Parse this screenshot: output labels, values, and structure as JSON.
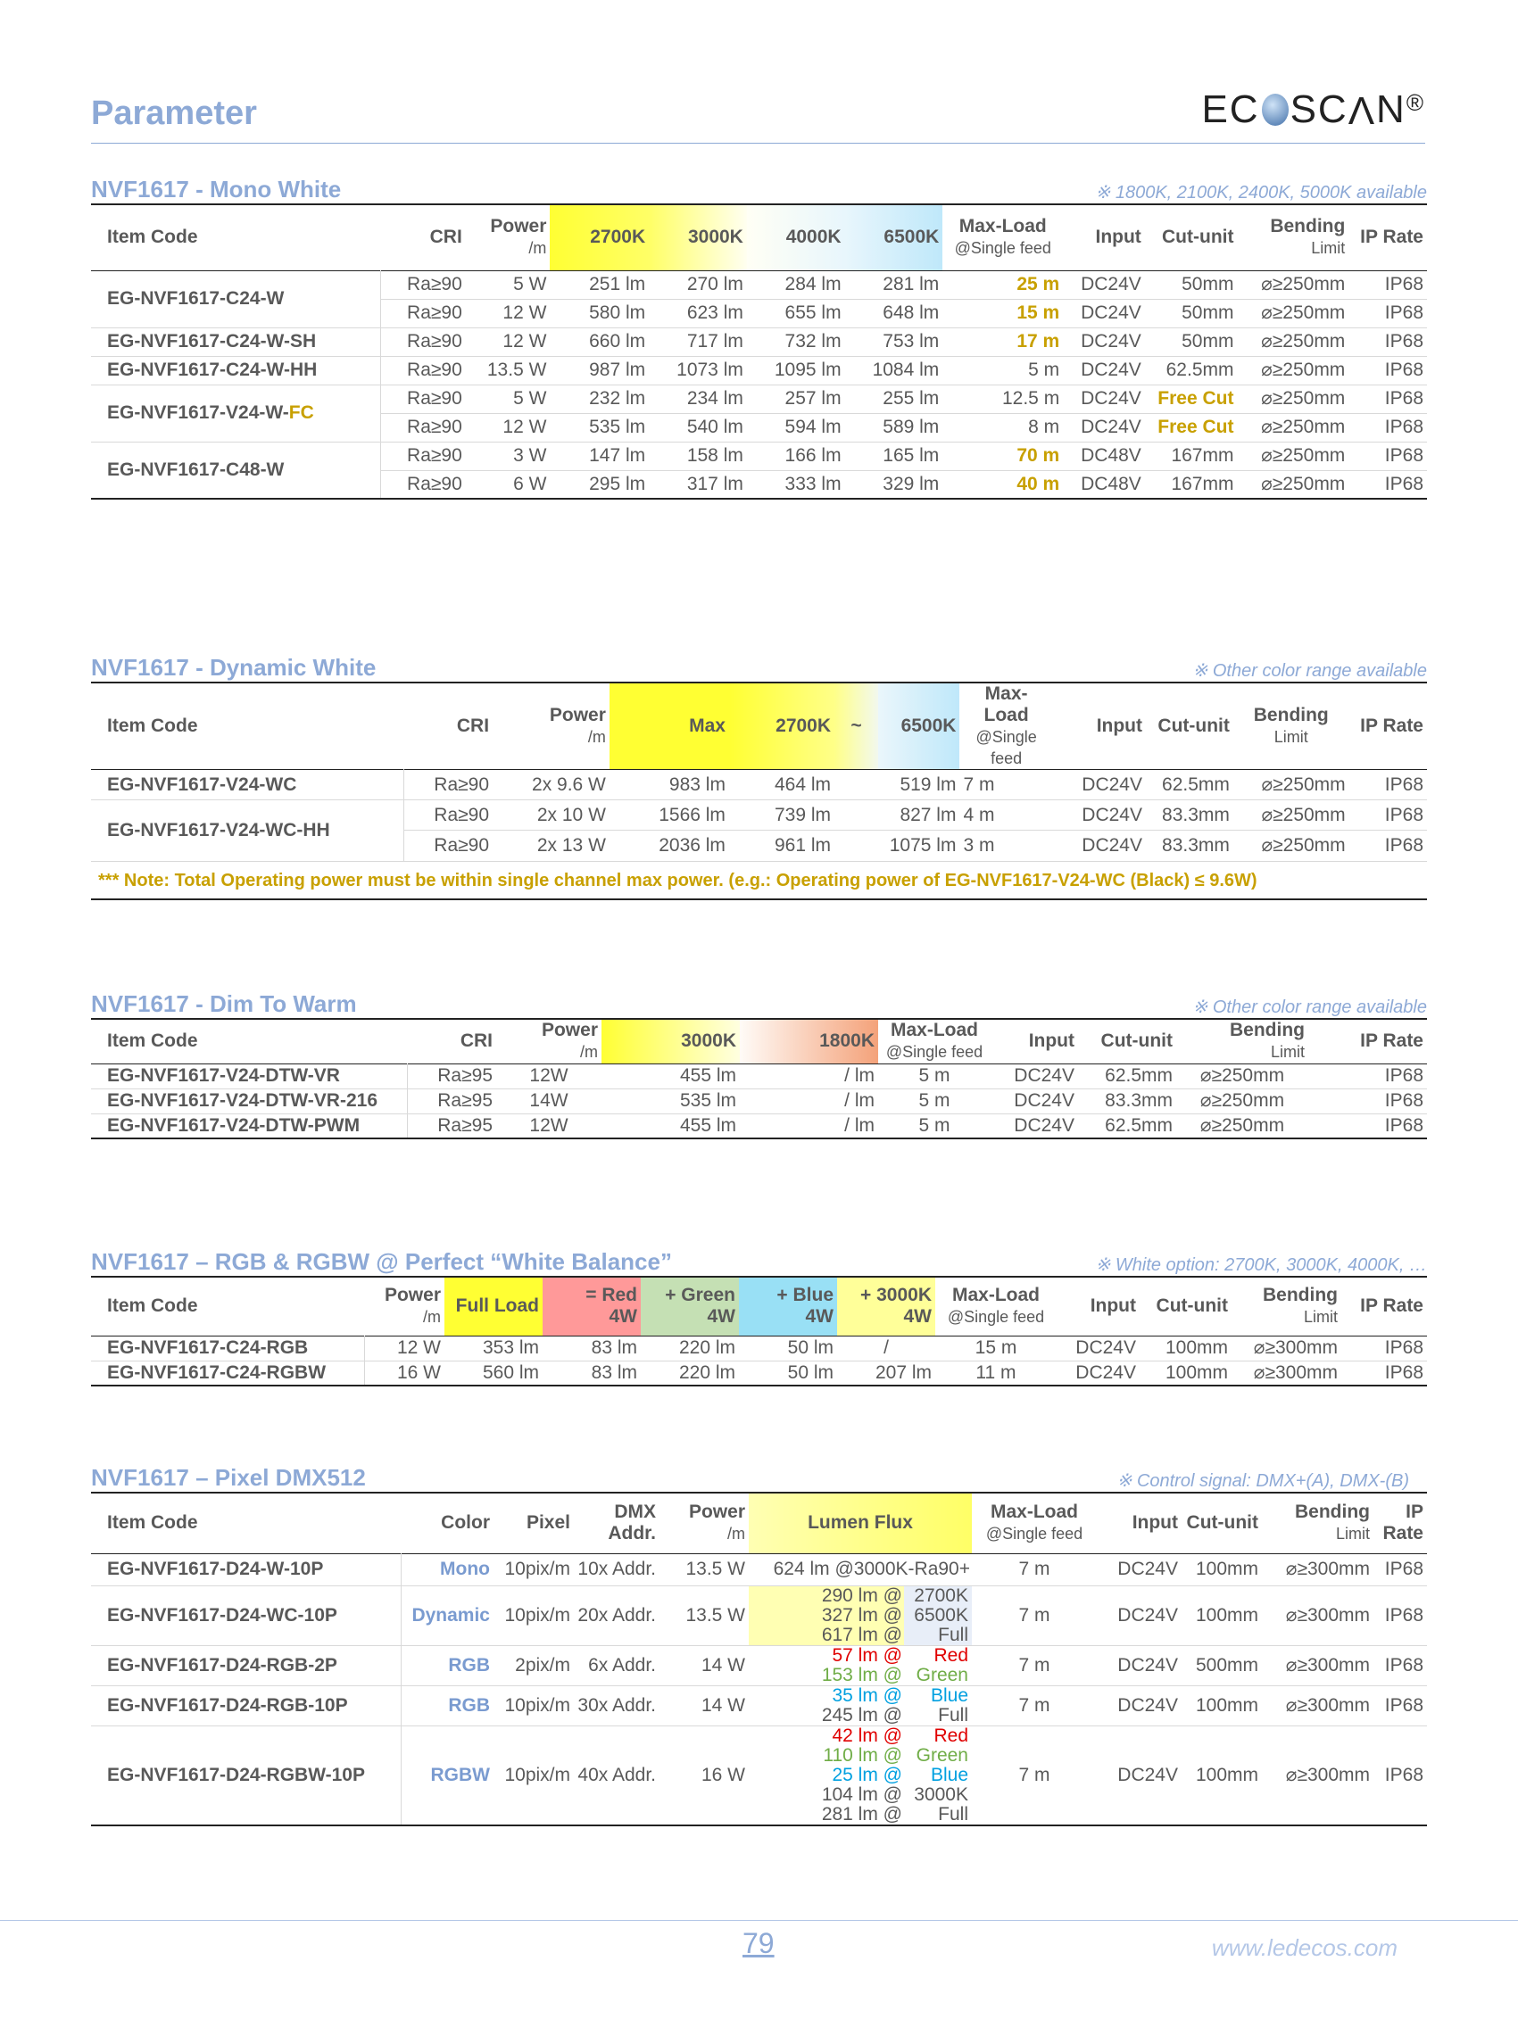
{
  "page": {
    "title": "Parameter",
    "logo": "ECOSCAN",
    "page_number": "79",
    "website": "www.ledecos.com"
  },
  "s1": {
    "title": "NVF1617 - Mono White",
    "note": "※  1800K, 2100K, 2400K, 5000K available",
    "headers": {
      "code": "Item Code",
      "cri": "CRI",
      "power": "Power",
      "power_unit": "/m",
      "k1": "2700K",
      "k2": "3000K",
      "k3": "4000K",
      "k4": "6500K",
      "maxload": "Max-Load",
      "maxload_sub": "@Single feed",
      "input": "Input",
      "cut": "Cut-unit",
      "bend": "Bending",
      "bend_sub": "Limit",
      "ip": "IP Rate"
    },
    "groups": [
      {
        "code": "EG-NVF1617-C24-W",
        "code_suffix": "",
        "rows": [
          [
            "Ra≥90",
            "5 W",
            "251  lm",
            "270  lm",
            "284  lm",
            "281  lm",
            "25 m",
            "DC24V",
            "50mm",
            "⌀≥250mm",
            "IP68"
          ],
          [
            "Ra≥90",
            "12 W",
            "580  lm",
            "623  lm",
            "655  lm",
            "648  lm",
            "15 m",
            "DC24V",
            "50mm",
            "⌀≥250mm",
            "IP68"
          ]
        ]
      },
      {
        "code": "EG-NVF1617-C24-W-SH",
        "code_suffix": "",
        "rows": [
          [
            "Ra≥90",
            "12 W",
            "660  lm",
            "717  lm",
            "732  lm",
            "753  lm",
            "17 m",
            "DC24V",
            "50mm",
            "⌀≥250mm",
            "IP68"
          ]
        ]
      },
      {
        "code": "EG-NVF1617-C24-W-HH",
        "code_suffix": "",
        "rows": [
          [
            "Ra≥90",
            "13.5 W",
            "987  lm",
            "1073  lm",
            "1095  lm",
            "1084  lm",
            "5 m",
            "DC24V",
            "62.5mm",
            "⌀≥250mm",
            "IP68"
          ]
        ]
      },
      {
        "code": "EG-NVF1617-V24-W-",
        "code_suffix": "FC",
        "rows": [
          [
            "Ra≥90",
            "5 W",
            "232  lm",
            "234  lm",
            "257  lm",
            "255  lm",
            "12.5  m",
            "DC24V",
            "Free Cut",
            "⌀≥250mm",
            "IP68"
          ],
          [
            "Ra≥90",
            "12 W",
            "535  lm",
            "540  lm",
            "594  lm",
            "589  lm",
            "8 m",
            "DC24V",
            "Free Cut",
            "⌀≥250mm",
            "IP68"
          ]
        ]
      },
      {
        "code": "EG-NVF1617-C48-W",
        "code_suffix": "",
        "rows": [
          [
            "Ra≥90",
            "3 W",
            "147  lm",
            "158  lm",
            "166  lm",
            "165  lm",
            "70 m",
            "DC48V",
            "167mm",
            "⌀≥250mm",
            "IP68"
          ],
          [
            "Ra≥90",
            "6 W",
            "295  lm",
            "317  lm",
            "333  lm",
            "329  lm",
            "40 m",
            "DC48V",
            "167mm",
            "⌀≥250mm",
            "IP68"
          ]
        ]
      }
    ]
  },
  "s2": {
    "title": "NVF1617 - Dynamic White",
    "note": "※  Other color range available",
    "headers": {
      "code": "Item Code",
      "cri": "CRI",
      "power": "Power",
      "power_unit": "/m",
      "max": "Max",
      "k1": "2700K",
      "tilde": "~",
      "k2": "6500K",
      "maxload": "Max-Load",
      "maxload_sub1": "@Single",
      "maxload_sub2": "feed",
      "input": "Input",
      "cut": "Cut-unit",
      "bend": "Bending",
      "bend_sub": "Limit",
      "ip": "IP Rate"
    },
    "groups": [
      {
        "code": "EG-NVF1617-V24-WC",
        "rows": [
          [
            "Ra≥90",
            "2x 9.6 W",
            "983  lm",
            "464  lm",
            "519  lm",
            "7  m",
            "DC24V",
            "62.5mm",
            "⌀≥250mm",
            "IP68"
          ]
        ]
      },
      {
        "code": "EG-NVF1617-V24-WC-HH",
        "rows": [
          [
            "Ra≥90",
            "2x 10 W",
            "1566  lm",
            "739  lm",
            "827  lm",
            "4  m",
            "DC24V",
            "83.3mm",
            "⌀≥250mm",
            "IP68"
          ],
          [
            "Ra≥90",
            "2x 13 W",
            "2036  lm",
            "961  lm",
            "1075  lm",
            "3  m",
            "DC24V",
            "83.3mm",
            "⌀≥250mm",
            "IP68"
          ]
        ]
      }
    ],
    "footnote": "*** Note: Total Operating  power must be within single  channel  max power. (e.g.: Operating  power of EG-NVF1617-V24-WC  (Black)  ≤ 9.6W)"
  },
  "s3": {
    "title": "NVF1617 - Dim To Warm",
    "note": "※  Other color range available",
    "headers": {
      "code": "Item Code",
      "cri": "CRI",
      "power": "Power",
      "power_unit": "/m",
      "k1": "3000K",
      "k2": "1800K",
      "maxload": "Max-Load",
      "maxload_sub": "@Single feed",
      "input": "Input",
      "cut": "Cut-unit",
      "bend": "Bending",
      "bend_sub": "Limit",
      "ip": "IP Rate"
    },
    "rows": [
      [
        "EG-NVF1617-V24-DTW-VR",
        "Ra≥95",
        "12W",
        "455  lm",
        "/  lm",
        "5 m",
        "DC24V",
        "62.5mm",
        "⌀≥250mm",
        "IP68"
      ],
      [
        "EG-NVF1617-V24-DTW-VR-216",
        "Ra≥95",
        "14W",
        "535  lm",
        "/  lm",
        "5 m",
        "DC24V",
        "83.3mm",
        "⌀≥250mm",
        "IP68"
      ],
      [
        "EG-NVF1617-V24-DTW-PWM",
        "Ra≥95",
        "12W",
        "455  lm",
        "/  lm",
        "5 m",
        "DC24V",
        "62.5mm",
        "⌀≥250mm",
        "IP68"
      ]
    ]
  },
  "s4": {
    "title": "NVF1617 – RGB & RGBW  @ Perfect “White Balance”",
    "note": "※  White option: 2700K, 3000K, 4000K, …",
    "headers": {
      "code": "Item Code",
      "power": "Power",
      "power_unit": "/m",
      "full": "Full  Load",
      "red": "=  Red",
      "red_sub": "4W",
      "green": "+  Green",
      "green_sub": "4W",
      "blue": "+  Blue",
      "blue_sub": "4W",
      "white": "+  3000K",
      "white_sub": "4W",
      "maxload": "Max-Load",
      "maxload_sub": "@Single feed",
      "input": "Input",
      "cut": "Cut-unit",
      "bend": "Bending",
      "bend_sub": "Limit",
      "ip": "IP Rate"
    },
    "rows": [
      [
        "EG-NVF1617-C24-RGB",
        "12 W",
        "353  lm",
        "83  lm",
        "220  lm",
        "50  lm",
        "/",
        "15  m",
        "DC24V",
        "100mm",
        "⌀≥300mm",
        "IP68"
      ],
      [
        "EG-NVF1617-C24-RGBW",
        "16 W",
        "560  lm",
        "83  lm",
        "220  lm",
        "50  lm",
        "207  lm",
        "11  m",
        "DC24V",
        "100mm",
        "⌀≥300mm",
        "IP68"
      ]
    ]
  },
  "s5": {
    "title": "NVF1617 – Pixel DMX512",
    "note": "※  Control signal: DMX+(A), DMX-(B)",
    "headers": {
      "code": "Item Code",
      "color": "Color",
      "pixel": "Pixel",
      "dmx": "DMX",
      "dmx_sub": "Addr.",
      "power": "Power",
      "power_unit": "/m",
      "lumen": "Lumen  Flux",
      "maxload": "Max-Load",
      "maxload_sub": "@Single feed",
      "input": "Input",
      "cut": "Cut-unit",
      "bend": "Bending",
      "bend_sub": "Limit",
      "ip": "IP",
      "ip_sub": "Rate"
    },
    "rows": [
      {
        "code": "EG-NVF1617-D24-W-10P",
        "color": "Mono",
        "pixel": "10pix/m",
        "dmx": "10x  Addr.",
        "power": "13.5  W",
        "lumen": [
          [
            "624  lm  @3000K-Ra90+",
            ""
          ]
        ],
        "maxload": "7  m",
        "input": "DC24V",
        "cut": "100mm",
        "bend": "⌀≥300mm",
        "ip": "IP68"
      },
      {
        "code": "EG-NVF1617-D24-WC-10P",
        "color": "Dynamic",
        "pixel": "10pix/m",
        "dmx": "20x  Addr.",
        "power": "13.5  W",
        "lumen": [
          [
            "290  lm  @",
            "2700K"
          ],
          [
            "327  lm  @",
            "6500K"
          ],
          [
            "617  lm  @",
            "Full"
          ]
        ],
        "maxload": "7  m",
        "input": "DC24V",
        "cut": "100mm",
        "bend": "⌀≥300mm",
        "ip": "IP68"
      },
      {
        "code": "EG-NVF1617-D24-RGB-2P",
        "color": "RGB",
        "pixel": "2pix/m",
        "dmx": "6x  Addr.",
        "power": "14  W",
        "lumen": [
          [
            "57  lm  @",
            "Red"
          ],
          [
            "153  lm  @",
            "Green"
          ]
        ],
        "maxload": "7  m",
        "input": "DC24V",
        "cut": "500mm",
        "bend": "⌀≥300mm",
        "ip": "IP68"
      },
      {
        "code": "EG-NVF1617-D24-RGB-10P",
        "color": "RGB",
        "pixel": "10pix/m",
        "dmx": "30x  Addr.",
        "power": "14  W",
        "lumen": [
          [
            "35  lm  @",
            "Blue"
          ],
          [
            "245  lm  @",
            "Full"
          ]
        ],
        "maxload": "7  m",
        "input": "DC24V",
        "cut": "100mm",
        "bend": "⌀≥300mm",
        "ip": "IP68"
      },
      {
        "code": "EG-NVF1617-D24-RGBW-10P",
        "color": "RGBW",
        "pixel": "10pix/m",
        "dmx": "40x  Addr.",
        "power": "16  W",
        "lumen": [
          [
            "42  lm  @",
            "Red"
          ],
          [
            "110  lm  @",
            "Green"
          ],
          [
            "25  lm  @",
            "Blue"
          ],
          [
            "104  lm  @",
            "3000K"
          ],
          [
            "281  lm  @",
            "Full"
          ]
        ],
        "maxload": "7  m",
        "input": "DC24V",
        "cut": "100mm",
        "bend": "⌀≥300mm",
        "ip": "IP68"
      }
    ]
  },
  "colors": {
    "accent": "#8da9d6",
    "gold": "#c8a000",
    "yellow": "#ffff33",
    "red": "#e00000",
    "green": "#70ad47",
    "blue": "#00a0e0"
  }
}
